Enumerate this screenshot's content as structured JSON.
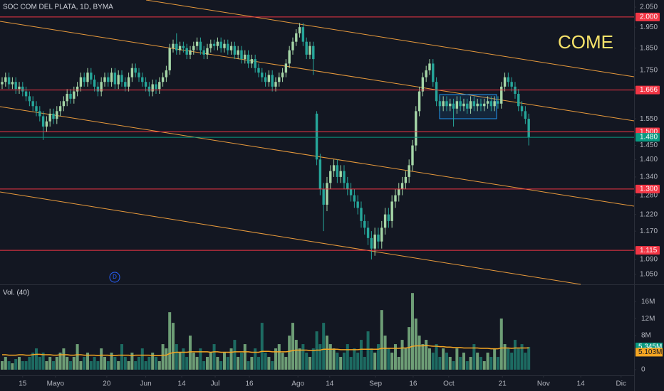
{
  "chart_data": {
    "type": "candlestick",
    "title": "SOC COM DEL PLATA, 1D, BYMA",
    "annotation": "COME",
    "event_marker": "D",
    "volume_title": "Vol. (40)",
    "log_scale": true,
    "grid": false,
    "up_color": "#a5d6a7",
    "down_color": "#26a69a",
    "volume_up_color": "#6e9e76",
    "volume_down_color": "#1d6b62",
    "ma_color": "#f5a623",
    "level_color": "#f23645",
    "last_color": "#089981",
    "xlim": [
      -0.625,
      184.8
    ],
    "xticks": [
      {
        "value": 6,
        "label": "15"
      },
      {
        "value": 15.6,
        "label": "Mayo"
      },
      {
        "value": 30.6,
        "label": "20"
      },
      {
        "value": 42,
        "label": "Jun"
      },
      {
        "value": 52.5,
        "label": "14"
      },
      {
        "value": 62.3,
        "label": "Jul"
      },
      {
        "value": 72.3,
        "label": "16"
      },
      {
        "value": 86.5,
        "label": "Ago"
      },
      {
        "value": 95.8,
        "label": "14"
      },
      {
        "value": 109.2,
        "label": "Sep"
      },
      {
        "value": 120.2,
        "label": "16"
      },
      {
        "value": 130.6,
        "label": "Oct"
      },
      {
        "value": 146.3,
        "label": "21"
      },
      {
        "value": 158.3,
        "label": "Nov"
      },
      {
        "value": 169.2,
        "label": "14"
      },
      {
        "value": 181,
        "label": "Dic"
      }
    ],
    "ylim": [
      1.024,
      2.087
    ],
    "yticks": [
      {
        "value": 2.05,
        "label": "2.050"
      },
      {
        "value": 1.95,
        "label": "1.950"
      },
      {
        "value": 1.85,
        "label": "1.850"
      },
      {
        "value": 1.75,
        "label": "1.750"
      },
      {
        "value": 1.55,
        "label": "1.550"
      },
      {
        "value": 1.45,
        "label": "1.450"
      },
      {
        "value": 1.4,
        "label": "1.400"
      },
      {
        "value": 1.34,
        "label": "1.340"
      },
      {
        "value": 1.28,
        "label": "1.280"
      },
      {
        "value": 1.22,
        "label": "1.220"
      },
      {
        "value": 1.17,
        "label": "1.170"
      },
      {
        "value": 1.09,
        "label": "1.090"
      },
      {
        "value": 1.05,
        "label": "1.050"
      }
    ],
    "levels": [
      {
        "value": 2,
        "label": "2.000"
      },
      {
        "value": 1.666,
        "label": "1.666"
      },
      {
        "value": 1.5,
        "label": "1.500"
      },
      {
        "value": 1.3,
        "label": "1.300"
      },
      {
        "value": 1.115,
        "label": "1.115"
      }
    ],
    "last_price": {
      "value": 1.48,
      "label": "1.480"
    },
    "open": [
      1.69,
      1.7,
      1.72,
      1.69,
      1.7,
      1.67,
      1.68,
      1.66,
      1.64,
      1.62,
      1.6,
      1.58,
      1.56,
      1.52,
      1.54,
      1.57,
      1.55,
      1.58,
      1.6,
      1.62,
      1.65,
      1.63,
      1.66,
      1.68,
      1.72,
      1.7,
      1.74,
      1.71,
      1.68,
      1.66,
      1.7,
      1.72,
      1.7,
      1.74,
      1.69,
      1.73,
      1.7,
      1.68,
      1.72,
      1.76,
      1.74,
      1.72,
      1.7,
      1.68,
      1.66,
      1.69,
      1.67,
      1.7,
      1.72,
      1.75,
      1.85,
      1.87,
      1.84,
      1.86,
      1.85,
      1.82,
      1.84,
      1.86,
      1.88,
      1.84,
      1.82,
      1.85,
      1.87,
      1.86,
      1.88,
      1.85,
      1.87,
      1.84,
      1.86,
      1.82,
      1.84,
      1.8,
      1.82,
      1.78,
      1.8,
      1.76,
      1.74,
      1.72,
      1.7,
      1.73,
      1.68,
      1.7,
      1.72,
      1.74,
      1.78,
      1.84,
      1.88,
      1.92,
      1.95,
      1.88,
      1.82,
      1.86,
      1.57,
      1.4,
      1.3,
      1.25,
      1.32,
      1.36,
      1.38,
      1.34,
      1.36,
      1.32,
      1.3,
      1.28,
      1.26,
      1.24,
      1.2,
      1.18,
      1.15,
      1.12,
      1.16,
      1.14,
      1.18,
      1.22,
      1.2,
      1.26,
      1.28,
      1.3,
      1.32,
      1.34,
      1.38,
      1.45,
      1.58,
      1.66,
      1.72,
      1.75,
      1.78,
      1.7,
      1.62,
      1.6,
      1.62,
      1.6,
      1.61,
      1.59,
      1.62,
      1.6,
      1.61,
      1.59,
      1.62,
      1.6,
      1.61,
      1.6,
      1.61,
      1.62,
      1.6,
      1.62,
      1.61,
      1.68,
      1.72,
      1.7,
      1.68,
      1.65,
      1.6,
      1.58,
      1.55
    ],
    "high": [
      1.72,
      1.74,
      1.74,
      1.72,
      1.72,
      1.7,
      1.7,
      1.68,
      1.66,
      1.64,
      1.62,
      1.6,
      1.58,
      1.56,
      1.59,
      1.59,
      1.6,
      1.62,
      1.64,
      1.67,
      1.67,
      1.68,
      1.7,
      1.74,
      1.74,
      1.76,
      1.76,
      1.73,
      1.7,
      1.72,
      1.74,
      1.74,
      1.76,
      1.76,
      1.75,
      1.75,
      1.72,
      1.74,
      1.78,
      1.78,
      1.76,
      1.74,
      1.72,
      1.7,
      1.71,
      1.71,
      1.72,
      1.74,
      1.77,
      1.87,
      1.89,
      1.92,
      1.88,
      1.88,
      1.87,
      1.86,
      1.88,
      1.9,
      1.9,
      1.86,
      1.87,
      1.89,
      1.89,
      1.9,
      1.9,
      1.89,
      1.89,
      1.88,
      1.88,
      1.86,
      1.86,
      1.84,
      1.84,
      1.82,
      1.82,
      1.78,
      1.76,
      1.74,
      1.75,
      1.75,
      1.72,
      1.74,
      1.76,
      1.8,
      1.86,
      1.9,
      1.94,
      1.97,
      1.97,
      1.9,
      1.88,
      1.88,
      1.58,
      1.42,
      1.32,
      1.34,
      1.38,
      1.4,
      1.4,
      1.38,
      1.38,
      1.34,
      1.32,
      1.3,
      1.28,
      1.26,
      1.22,
      1.2,
      1.17,
      1.18,
      1.18,
      1.2,
      1.24,
      1.24,
      1.28,
      1.3,
      1.32,
      1.34,
      1.36,
      1.4,
      1.47,
      1.6,
      1.68,
      1.74,
      1.77,
      1.8,
      1.8,
      1.72,
      1.64,
      1.64,
      1.64,
      1.63,
      1.63,
      1.64,
      1.64,
      1.63,
      1.63,
      1.64,
      1.64,
      1.63,
      1.63,
      1.63,
      1.64,
      1.64,
      1.64,
      1.64,
      1.7,
      1.74,
      1.74,
      1.72,
      1.7,
      1.67,
      1.62,
      1.6,
      1.57
    ],
    "low": [
      1.67,
      1.68,
      1.67,
      1.67,
      1.65,
      1.65,
      1.64,
      1.62,
      1.6,
      1.58,
      1.56,
      1.54,
      1.47,
      1.5,
      1.52,
      1.53,
      1.53,
      1.56,
      1.58,
      1.6,
      1.61,
      1.61,
      1.64,
      1.66,
      1.68,
      1.68,
      1.69,
      1.66,
      1.64,
      1.64,
      1.68,
      1.68,
      1.68,
      1.67,
      1.67,
      1.68,
      1.66,
      1.66,
      1.7,
      1.72,
      1.7,
      1.68,
      1.66,
      1.64,
      1.64,
      1.65,
      1.65,
      1.68,
      1.7,
      1.73,
      1.83,
      1.82,
      1.82,
      1.83,
      1.8,
      1.8,
      1.82,
      1.84,
      1.82,
      1.8,
      1.8,
      1.83,
      1.84,
      1.84,
      1.83,
      1.83,
      1.82,
      1.82,
      1.8,
      1.8,
      1.78,
      1.78,
      1.76,
      1.76,
      1.74,
      1.72,
      1.7,
      1.68,
      1.68,
      1.66,
      1.66,
      1.68,
      1.7,
      1.72,
      1.76,
      1.82,
      1.86,
      1.9,
      1.86,
      1.8,
      1.8,
      1.73,
      1.38,
      1.28,
      1.17,
      1.23,
      1.3,
      1.34,
      1.32,
      1.32,
      1.3,
      1.28,
      1.26,
      1.24,
      1.22,
      1.18,
      1.16,
      1.13,
      1.09,
      1.1,
      1.12,
      1.12,
      1.16,
      1.18,
      1.18,
      1.24,
      1.26,
      1.28,
      1.3,
      1.32,
      1.36,
      1.43,
      1.56,
      1.64,
      1.7,
      1.73,
      1.68,
      1.6,
      1.58,
      1.58,
      1.58,
      1.58,
      1.52,
      1.57,
      1.58,
      1.58,
      1.57,
      1.57,
      1.58,
      1.58,
      1.58,
      1.58,
      1.59,
      1.58,
      1.58,
      1.59,
      1.59,
      1.66,
      1.68,
      1.66,
      1.63,
      1.58,
      1.56,
      1.53,
      1.45
    ],
    "close": [
      1.7,
      1.72,
      1.69,
      1.7,
      1.67,
      1.68,
      1.66,
      1.64,
      1.62,
      1.6,
      1.58,
      1.56,
      1.52,
      1.54,
      1.57,
      1.55,
      1.58,
      1.6,
      1.62,
      1.65,
      1.63,
      1.66,
      1.68,
      1.72,
      1.7,
      1.74,
      1.71,
      1.68,
      1.66,
      1.7,
      1.72,
      1.7,
      1.74,
      1.69,
      1.73,
      1.7,
      1.68,
      1.72,
      1.76,
      1.74,
      1.72,
      1.7,
      1.68,
      1.66,
      1.69,
      1.67,
      1.7,
      1.72,
      1.75,
      1.85,
      1.87,
      1.84,
      1.86,
      1.85,
      1.82,
      1.84,
      1.86,
      1.88,
      1.84,
      1.82,
      1.85,
      1.87,
      1.86,
      1.88,
      1.85,
      1.87,
      1.84,
      1.86,
      1.82,
      1.84,
      1.8,
      1.82,
      1.78,
      1.8,
      1.76,
      1.74,
      1.72,
      1.7,
      1.73,
      1.68,
      1.7,
      1.72,
      1.74,
      1.78,
      1.84,
      1.88,
      1.92,
      1.95,
      1.88,
      1.82,
      1.86,
      1.8,
      1.4,
      1.3,
      1.25,
      1.32,
      1.36,
      1.38,
      1.34,
      1.36,
      1.32,
      1.3,
      1.28,
      1.26,
      1.24,
      1.2,
      1.18,
      1.15,
      1.12,
      1.16,
      1.14,
      1.18,
      1.22,
      1.2,
      1.26,
      1.28,
      1.3,
      1.32,
      1.34,
      1.38,
      1.45,
      1.58,
      1.66,
      1.72,
      1.75,
      1.78,
      1.7,
      1.62,
      1.6,
      1.62,
      1.6,
      1.61,
      1.59,
      1.62,
      1.6,
      1.61,
      1.59,
      1.62,
      1.6,
      1.61,
      1.6,
      1.61,
      1.62,
      1.6,
      1.62,
      1.61,
      1.68,
      1.72,
      1.7,
      1.68,
      1.65,
      1.6,
      1.58,
      1.55,
      1.48
    ],
    "vlim": [
      0,
      19.7
    ],
    "vticks": [
      {
        "value": 16,
        "label": "16M"
      },
      {
        "value": 12,
        "label": "12M"
      },
      {
        "value": 8,
        "label": "8M"
      },
      0
    ],
    "volume": [
      2,
      3,
      2,
      1.5,
      2.5,
      3,
      2,
      2,
      3,
      4,
      5,
      3,
      4,
      2,
      3,
      2,
      3,
      4,
      5,
      3,
      2,
      3,
      6,
      2,
      3,
      4,
      2,
      3,
      2,
      5,
      3,
      2,
      4,
      3,
      2,
      6,
      3,
      2,
      4,
      2,
      3,
      5,
      2,
      3,
      4,
      3,
      2,
      6,
      5,
      13.5,
      11,
      6,
      4,
      5,
      3,
      8,
      4,
      3,
      5,
      2,
      3,
      4,
      6,
      3,
      2,
      4,
      3,
      5,
      7,
      3,
      4,
      6,
      2,
      3,
      5,
      3,
      11,
      4,
      3,
      2,
      5,
      6,
      4,
      3,
      8,
      11,
      7,
      5,
      6,
      4,
      3,
      5,
      9,
      6,
      11,
      8,
      6,
      5,
      4,
      3,
      4,
      6,
      3,
      5,
      4,
      7,
      3,
      9,
      5,
      4,
      6,
      14,
      8,
      5,
      4,
      6,
      3,
      7,
      5,
      10,
      18,
      12,
      8,
      6,
      7,
      5,
      4,
      6,
      3,
      5,
      4,
      3,
      2,
      5,
      3,
      4,
      2,
      3,
      6,
      4,
      3,
      2,
      4,
      3,
      5,
      3,
      12,
      6,
      5,
      4,
      7,
      5,
      6,
      4,
      5.345
    ],
    "volume_value_labels": {
      "154": "5.345M"
    },
    "volume_ma": [
      3.5,
      3.5,
      3.4,
      3.4,
      3.4,
      3.5,
      3.5,
      3.4,
      3.4,
      3.5,
      3.6,
      3.6,
      3.5,
      3.5,
      3.5,
      3.4,
      3.4,
      3.5,
      3.5,
      3.5,
      3.4,
      3.4,
      3.5,
      3.5,
      3.4,
      3.4,
      3.4,
      3.4,
      3.3,
      3.4,
      3.4,
      3.4,
      3.3,
      3.3,
      3.4,
      3.4,
      3.4,
      3.4,
      3.3,
      3.4,
      3.4,
      3.4,
      3.4,
      3.4,
      3.3,
      3.3,
      3.3,
      3.4,
      3.4,
      3.8,
      4.0,
      4.1,
      4.1,
      4.1,
      4.1,
      4.2,
      4.2,
      4.2,
      4.2,
      4.2,
      4.2,
      4.1,
      4.2,
      4.2,
      4.1,
      4.1,
      4.1,
      4.1,
      4.2,
      4.2,
      4.2,
      4.2,
      4.2,
      4.1,
      4.1,
      4.1,
      4.3,
      4.3,
      4.3,
      4.2,
      4.2,
      4.2,
      4.2,
      4.2,
      4.3,
      4.5,
      4.6,
      4.6,
      4.6,
      4.6,
      4.5,
      4.5,
      4.6,
      4.6,
      4.8,
      4.8,
      4.8,
      4.8,
      4.8,
      4.7,
      4.7,
      4.7,
      4.7,
      4.7,
      4.7,
      4.8,
      4.8,
      4.8,
      4.8,
      4.8,
      4.8,
      5.0,
      5.0,
      5.0,
      5.0,
      5.0,
      5.0,
      5.1,
      5.1,
      5.2,
      5.5,
      5.6,
      5.6,
      5.6,
      5.7,
      5.6,
      5.5,
      5.5,
      5.4,
      5.4,
      5.3,
      5.3,
      5.2,
      5.2,
      5.2,
      5.1,
      5.1,
      5.1,
      5.1,
      5.1,
      5.0,
      5.0,
      5.0,
      4.9,
      4.9,
      4.9,
      5.1,
      5.1,
      5.1,
      5.0,
      5.1,
      5.1,
      5.1,
      5.1,
      5.103
    ],
    "volume_ma_label": "5.103M"
  }
}
